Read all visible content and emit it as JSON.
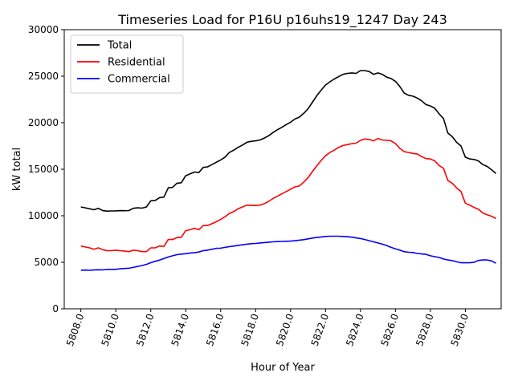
{
  "chart_data": {
    "type": "line",
    "title": "Timeseries Load for P16U p16uhs19_1247  Day 243",
    "xlabel": "Hour of Year",
    "ylabel": "kW total",
    "xlim": [
      5807.05,
      5832.05
    ],
    "ylim": [
      0,
      30000
    ],
    "xticks": [
      5808,
      5810,
      5812,
      5814,
      5816,
      5818,
      5820,
      5822,
      5824,
      5826,
      5828,
      5830
    ],
    "xtick_labels": [
      "5808.0",
      "5810.0",
      "5812.0",
      "5814.0",
      "5816.0",
      "5818.0",
      "5820.0",
      "5822.0",
      "5824.0",
      "5826.0",
      "5828.0",
      "5830.0"
    ],
    "yticks": [
      0,
      5000,
      10000,
      15000,
      20000,
      25000,
      30000
    ],
    "ytick_labels": [
      "0",
      "5000",
      "10000",
      "15000",
      "20000",
      "25000",
      "30000"
    ],
    "legend_position": "top-left",
    "x": [
      5808.0,
      5808.25,
      5808.5,
      5808.75,
      5809.0,
      5809.25,
      5809.5,
      5809.75,
      5810.0,
      5810.25,
      5810.5,
      5810.75,
      5811.0,
      5811.25,
      5811.5,
      5811.75,
      5812.0,
      5812.25,
      5812.5,
      5812.75,
      5813.0,
      5813.25,
      5813.5,
      5813.75,
      5814.0,
      5814.25,
      5814.5,
      5814.75,
      5815.0,
      5815.25,
      5815.5,
      5815.75,
      5816.0,
      5816.25,
      5816.5,
      5816.75,
      5817.0,
      5817.25,
      5817.5,
      5817.75,
      5818.0,
      5818.25,
      5818.5,
      5818.75,
      5819.0,
      5819.25,
      5819.5,
      5819.75,
      5820.0,
      5820.25,
      5820.5,
      5820.75,
      5821.0,
      5821.25,
      5821.5,
      5821.75,
      5822.0,
      5822.25,
      5822.5,
      5822.75,
      5823.0,
      5823.25,
      5823.5,
      5823.75,
      5824.0,
      5824.25,
      5824.5,
      5824.75,
      5825.0,
      5825.25,
      5825.5,
      5825.75,
      5826.0,
      5826.25,
      5826.5,
      5826.75,
      5827.0,
      5827.25,
      5827.5,
      5827.75,
      5828.0,
      5828.25,
      5828.5,
      5828.75,
      5829.0,
      5829.25,
      5829.5,
      5829.75,
      5830.0,
      5830.25,
      5830.5,
      5830.75,
      5831.0,
      5831.25,
      5831.5,
      5831.75
    ],
    "series": [
      {
        "name": "Total",
        "color": "#000000",
        "values": [
          10950,
          10850,
          10750,
          10650,
          10800,
          10550,
          10500,
          10520,
          10530,
          10550,
          10540,
          10560,
          10800,
          10850,
          10820,
          10950,
          11600,
          11650,
          11950,
          12000,
          13000,
          13050,
          13500,
          13550,
          14300,
          14500,
          14700,
          14650,
          15200,
          15250,
          15500,
          15750,
          16000,
          16300,
          16800,
          17050,
          17350,
          17600,
          17900,
          18000,
          18050,
          18150,
          18350,
          18600,
          18950,
          19250,
          19500,
          19800,
          20050,
          20400,
          20600,
          21000,
          21500,
          22200,
          22900,
          23500,
          24050,
          24400,
          24700,
          24950,
          25200,
          25300,
          25350,
          25300,
          25600,
          25600,
          25500,
          25200,
          25350,
          25200,
          24900,
          24750,
          24450,
          23900,
          23200,
          22950,
          22850,
          22650,
          22350,
          21950,
          21800,
          21550,
          20950,
          20450,
          18900,
          18500,
          17900,
          17500,
          16300,
          16100,
          16050,
          15900,
          15500,
          15300,
          14950,
          14550
        ]
      },
      {
        "name": "Residential",
        "color": "#ff0000",
        "values": [
          6750,
          6650,
          6550,
          6400,
          6550,
          6350,
          6250,
          6250,
          6300,
          6250,
          6200,
          6150,
          6300,
          6250,
          6150,
          6150,
          6550,
          6550,
          6750,
          6700,
          7450,
          7450,
          7650,
          7700,
          8400,
          8500,
          8650,
          8500,
          8950,
          8950,
          9150,
          9350,
          9600,
          9900,
          10250,
          10450,
          10750,
          10950,
          11150,
          11100,
          11100,
          11150,
          11300,
          11550,
          11850,
          12100,
          12350,
          12600,
          12850,
          13100,
          13200,
          13600,
          14100,
          14750,
          15350,
          15950,
          16450,
          16800,
          17050,
          17350,
          17550,
          17650,
          17750,
          17800,
          18100,
          18250,
          18200,
          18050,
          18300,
          18150,
          18100,
          18050,
          17750,
          17250,
          16900,
          16800,
          16700,
          16650,
          16350,
          16150,
          16100,
          15900,
          15400,
          15100,
          13800,
          13500,
          13000,
          12600,
          11350,
          11150,
          10900,
          10700,
          10300,
          10100,
          9950,
          9700
        ]
      },
      {
        "name": "Commercial",
        "color": "#0000ff",
        "values": [
          4150,
          4160,
          4140,
          4170,
          4200,
          4180,
          4230,
          4240,
          4240,
          4300,
          4340,
          4360,
          4450,
          4560,
          4650,
          4780,
          4960,
          5100,
          5230,
          5400,
          5570,
          5700,
          5820,
          5880,
          5920,
          6000,
          6030,
          6100,
          6250,
          6300,
          6400,
          6500,
          6520,
          6600,
          6680,
          6740,
          6820,
          6880,
          6950,
          7000,
          7030,
          7080,
          7120,
          7160,
          7200,
          7220,
          7240,
          7260,
          7280,
          7320,
          7380,
          7430,
          7520,
          7600,
          7660,
          7720,
          7780,
          7800,
          7800,
          7800,
          7780,
          7750,
          7700,
          7620,
          7550,
          7450,
          7320,
          7200,
          7080,
          6950,
          6800,
          6600,
          6450,
          6300,
          6150,
          6080,
          6050,
          5950,
          5900,
          5850,
          5700,
          5600,
          5520,
          5350,
          5250,
          5180,
          5050,
          4950,
          4960,
          4950,
          5000,
          5200,
          5250,
          5250,
          5150,
          4900
        ]
      }
    ]
  }
}
